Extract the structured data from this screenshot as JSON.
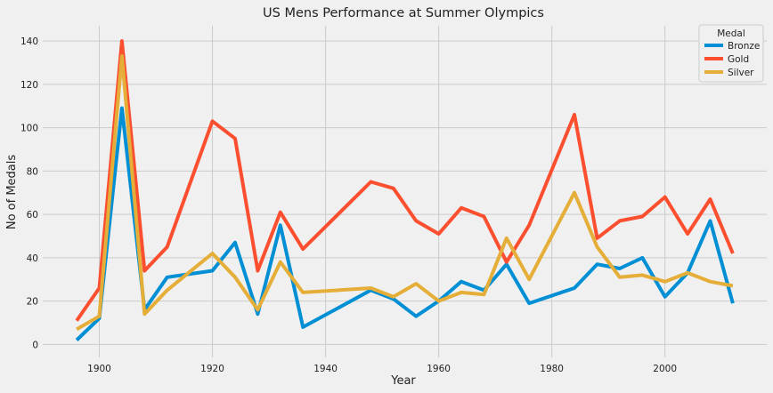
{
  "chart_data": {
    "type": "line",
    "title": "US Mens Performance at Summer Olympics",
    "xlabel": "Year",
    "ylabel": "No of Medals",
    "xlim": [
      1890,
      2018
    ],
    "ylim": [
      -6,
      147
    ],
    "xticks": [
      1900,
      1920,
      1940,
      1960,
      1980,
      2000
    ],
    "yticks": [
      0,
      20,
      40,
      60,
      80,
      100,
      120,
      140
    ],
    "grid": true,
    "legend": {
      "title": "Medal",
      "placement": "top-right"
    },
    "x": [
      1896,
      1900,
      1904,
      1908,
      1912,
      1920,
      1924,
      1928,
      1932,
      1936,
      1948,
      1952,
      1956,
      1960,
      1964,
      1968,
      1972,
      1976,
      1984,
      1988,
      1992,
      1996,
      2000,
      2004,
      2008,
      2012
    ],
    "series": [
      {
        "name": "Bronze",
        "color": "#008fd5",
        "values": [
          2,
          12,
          109,
          16,
          31,
          34,
          47,
          14,
          55,
          8,
          25,
          21,
          13,
          20,
          29,
          25,
          37,
          19,
          26,
          37,
          35,
          40,
          22,
          33,
          57,
          19
        ]
      },
      {
        "name": "Gold",
        "color": "#fc4f30",
        "values": [
          11,
          26,
          140,
          34,
          45,
          103,
          95,
          34,
          61,
          44,
          75,
          72,
          57,
          51,
          63,
          59,
          38,
          55,
          106,
          49,
          57,
          59,
          68,
          51,
          67,
          42
        ]
      },
      {
        "name": "Silver",
        "color": "#e5ae38",
        "values": [
          7,
          13,
          133,
          14,
          25,
          42,
          31,
          16,
          38,
          24,
          26,
          22,
          28,
          20,
          24,
          23,
          49,
          30,
          70,
          45,
          31,
          32,
          29,
          33,
          29,
          27
        ]
      }
    ]
  }
}
